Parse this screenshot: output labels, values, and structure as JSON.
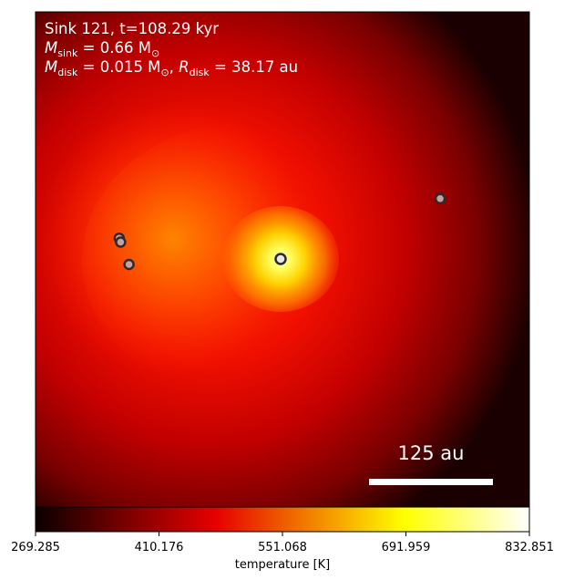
{
  "chart_data": {
    "type": "heatmap",
    "title": "",
    "colormap": "hot",
    "annotations": {
      "sink_label": "Sink 121, t=108.29 kyr",
      "msink": {
        "symbol": "M",
        "sub": "sink",
        "rest": " = 0.66 M",
        "unit_sub": "⊙"
      },
      "mdisk": {
        "symbol": "M",
        "sub": "disk",
        "rest": " = 0.015 M",
        "unit_sub": "⊙",
        "sep": ", "
      },
      "rdisk": {
        "symbol": "R",
        "sub": "disk",
        "rest": " = 38.17 au"
      },
      "scalebar_label": "125 au"
    },
    "colorbar": {
      "label": "temperature [K]",
      "min": 269.285,
      "max": 832.851,
      "ticks": [
        "269.285",
        "410.176",
        "551.068",
        "691.959",
        "832.851"
      ]
    },
    "sinks": [
      {
        "name": "central-sink",
        "x": 0.0,
        "y": 0.0,
        "color": "#e8e8e8"
      },
      {
        "name": "sink-a",
        "x": 0.323,
        "y": 0.122,
        "color": "#c8a0a0"
      },
      {
        "name": "sink-b",
        "x": -0.327,
        "y": 0.042,
        "color": "#c8a0a0"
      },
      {
        "name": "sink-c",
        "x": -0.324,
        "y": 0.034,
        "color": "#c8a0a0"
      },
      {
        "name": "sink-d",
        "x": -0.307,
        "y": -0.011,
        "color": "#c8a0a0"
      }
    ]
  }
}
